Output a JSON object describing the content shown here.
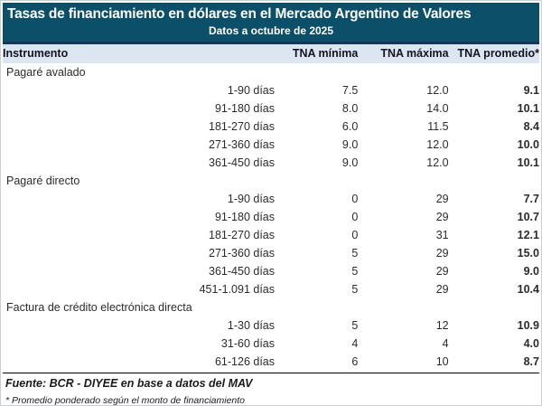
{
  "chart_data": {
    "type": "table",
    "title": "Tasas de financiamiento en dólares en el Mercado Argentino de Valores",
    "subtitle": "Datos a octubre de 2025",
    "columns": [
      "Instrumento",
      "TNA mínima",
      "TNA máxima",
      "TNA promedio*"
    ],
    "sections": [
      {
        "name": "Pagaré avalado",
        "rows": [
          {
            "plazo": "1-90 días",
            "min": "7.5",
            "max": "12.0",
            "prom": "9.1"
          },
          {
            "plazo": "91-180 días",
            "min": "8.0",
            "max": "14.0",
            "prom": "10.1"
          },
          {
            "plazo": "181-270 días",
            "min": "6.0",
            "max": "11.5",
            "prom": "8.4"
          },
          {
            "plazo": "271-360 días",
            "min": "9.0",
            "max": "12.0",
            "prom": "10.0"
          },
          {
            "plazo": "361-450 días",
            "min": "9.0",
            "max": "12.0",
            "prom": "10.1"
          }
        ]
      },
      {
        "name": "Pagaré directo",
        "rows": [
          {
            "plazo": "1-90 días",
            "min": "0",
            "max": "29",
            "prom": "7.7"
          },
          {
            "plazo": "91-180 días",
            "min": "0",
            "max": "29",
            "prom": "10.7"
          },
          {
            "plazo": "181-270 días",
            "min": "0",
            "max": "31",
            "prom": "12.1"
          },
          {
            "plazo": "271-360 días",
            "min": "5",
            "max": "29",
            "prom": "15.0"
          },
          {
            "plazo": "361-450 días",
            "min": "5",
            "max": "29",
            "prom": "9.0"
          },
          {
            "plazo": "451-1.091 días",
            "min": "5",
            "max": "29",
            "prom": "10.4"
          }
        ]
      },
      {
        "name": "Factura de crédito electrónica directa",
        "rows": [
          {
            "plazo": "1-30 días",
            "min": "5",
            "max": "12",
            "prom": "10.9"
          },
          {
            "plazo": "31-60 días",
            "min": "4",
            "max": "4",
            "prom": "4.0"
          },
          {
            "plazo": "61-126 días",
            "min": "6",
            "max": "10",
            "prom": "8.7"
          }
        ]
      }
    ],
    "source": "Fuente: BCR - DIYEE en base a datos del MAV",
    "footnote": "* Promedio ponderado según el monto de financiamiento"
  },
  "colors": {
    "header_bg": "#0b4f68",
    "column_header_bg": "#dce6f1",
    "divider_navy": "#16365c",
    "rule_black": "#000000",
    "body_text": "#2b2b2b"
  }
}
